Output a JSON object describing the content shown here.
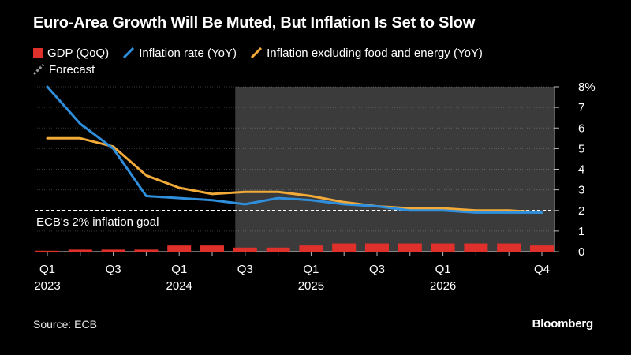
{
  "title": "Euro-Area Growth Will Be Muted, But Inflation Is Set to Slow",
  "source": "Source: ECB",
  "brand": "Bloomberg",
  "colors": {
    "background": "#000000",
    "forecast_shade": "#3b3b3b",
    "gdp": "#e0302b",
    "inflation": "#2f8fdd",
    "core": "#f2ab38",
    "goal_line": "#ffffff",
    "grid": "#ffffff"
  },
  "legend": [
    {
      "label": "GDP (QoQ)",
      "swatch": "box",
      "color": "#e0302b"
    },
    {
      "label": "Inflation rate (YoY)",
      "swatch": "line",
      "color": "#2f8fdd"
    },
    {
      "label": "Inflation excluding food and energy (YoY)",
      "swatch": "line",
      "color": "#f2ab38"
    },
    {
      "label": "Forecast",
      "swatch": "dashed-line",
      "color": "#9a9a9a"
    }
  ],
  "chart_data": {
    "type": "bar+line",
    "title": "Euro-Area Growth Will Be Muted, But Inflation Is Set to Slow",
    "categories": [
      "2023 Q1",
      "2023 Q2",
      "2023 Q3",
      "2023 Q4",
      "2024 Q1",
      "2024 Q2",
      "2024 Q3",
      "2024 Q4",
      "2025 Q1",
      "2025 Q2",
      "2025 Q3",
      "2025 Q4",
      "2026 Q1",
      "2026 Q2",
      "2026 Q3",
      "2026 Q4"
    ],
    "x_tick_labels": [
      {
        "index": 0,
        "quarter": "Q1",
        "year": "2023"
      },
      {
        "index": 2,
        "quarter": "Q3",
        "year": ""
      },
      {
        "index": 4,
        "quarter": "Q1",
        "year": "2024"
      },
      {
        "index": 6,
        "quarter": "Q3",
        "year": ""
      },
      {
        "index": 8,
        "quarter": "Q1",
        "year": "2025"
      },
      {
        "index": 10,
        "quarter": "Q3",
        "year": ""
      },
      {
        "index": 12,
        "quarter": "Q1",
        "year": "2026"
      },
      {
        "index": 15,
        "quarter": "Q4",
        "year": ""
      }
    ],
    "forecast_start_index": 5.7,
    "series": [
      {
        "name": "GDP (QoQ)",
        "kind": "bar",
        "values": [
          0.0,
          0.1,
          0.1,
          0.1,
          0.3,
          0.3,
          0.2,
          0.2,
          0.3,
          0.4,
          0.4,
          0.4,
          0.4,
          0.4,
          0.4,
          0.3
        ]
      },
      {
        "name": "Inflation rate (YoY)",
        "kind": "line",
        "values": [
          8.0,
          6.2,
          5.0,
          2.7,
          2.6,
          2.5,
          2.3,
          2.6,
          2.5,
          2.3,
          2.2,
          2.0,
          2.0,
          1.9,
          1.9,
          1.9
        ]
      },
      {
        "name": "Inflation excluding food and energy (YoY)",
        "kind": "line",
        "values": [
          5.5,
          5.5,
          5.1,
          3.7,
          3.1,
          2.8,
          2.9,
          2.9,
          2.7,
          2.4,
          2.2,
          2.1,
          2.1,
          2.0,
          2.0,
          1.9
        ]
      }
    ],
    "y_ticks": [
      "0",
      "1",
      "2",
      "3",
      "4",
      "5",
      "6",
      "7",
      "8%"
    ],
    "ylim": [
      0,
      8
    ],
    "y_axis_side": "right",
    "reference_line": {
      "value": 2,
      "label": "ECB's 2% inflation goal"
    },
    "xlabel": "",
    "ylabel": ""
  }
}
